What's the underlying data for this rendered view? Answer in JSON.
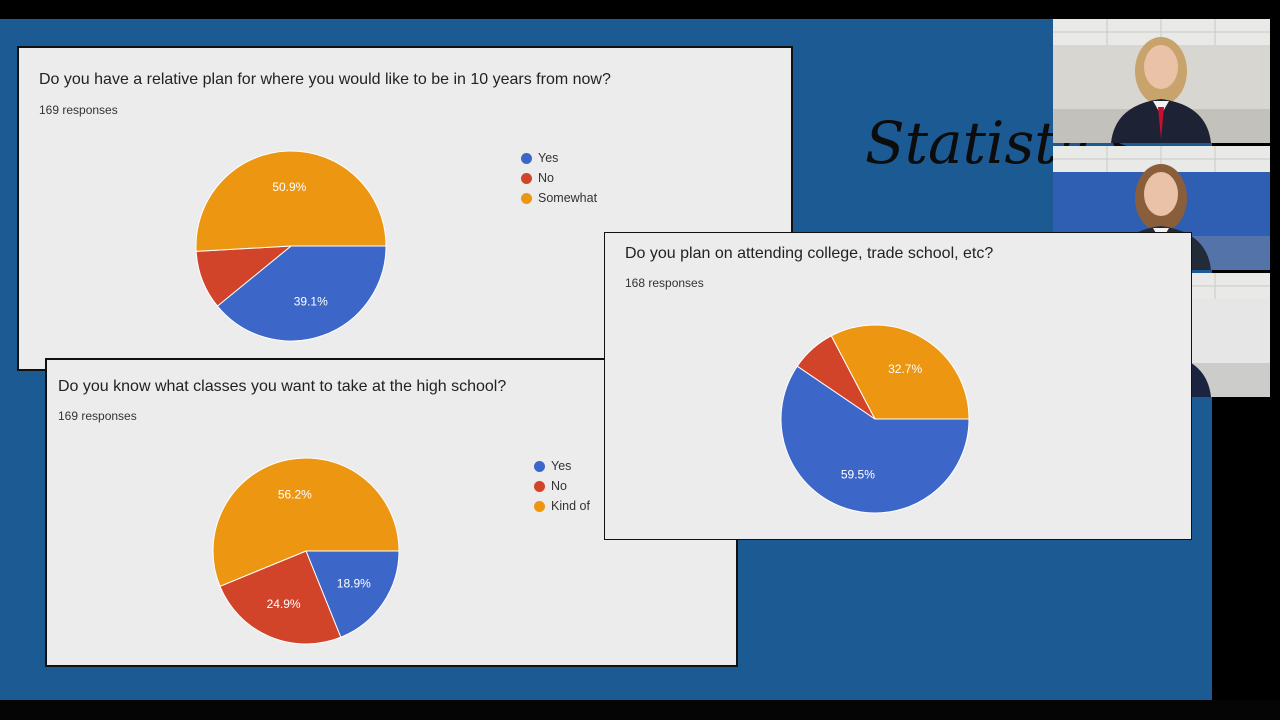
{
  "slide": {
    "title": "Statistics",
    "colors": {
      "background": "#1c5a94",
      "yes": "#3c67c8",
      "no": "#d2442a",
      "other": "#ec9612"
    }
  },
  "cards": [
    {
      "question": "Do you have a relative plan for where you would like to be in 10 years from now?",
      "responses": "169 responses",
      "legend": [
        "Yes",
        "No",
        "Somewhat"
      ],
      "chart_data": {
        "type": "pie",
        "categories": [
          "Yes",
          "No",
          "Somewhat"
        ],
        "values": [
          39.1,
          10.0,
          50.9
        ],
        "data_labels": [
          "39.1%",
          "",
          "50.9%"
        ],
        "colors": [
          "#3c67c8",
          "#d2442a",
          "#ec9612"
        ],
        "legend_position": "right"
      }
    },
    {
      "question": "Do you know what classes you want to take at the high school?",
      "responses": "169 responses",
      "legend": [
        "Yes",
        "No",
        "Kind of"
      ],
      "chart_data": {
        "type": "pie",
        "categories": [
          "Yes",
          "No",
          "Kind of"
        ],
        "values": [
          18.9,
          24.9,
          56.2
        ],
        "data_labels": [
          "18.9%",
          "24.9%",
          "56.2%"
        ],
        "colors": [
          "#3c67c8",
          "#d2442a",
          "#ec9612"
        ],
        "legend_position": "right"
      }
    },
    {
      "question": "Do you plan on attending college, trade school, etc?",
      "responses": "168 responses",
      "legend": [],
      "chart_data": {
        "type": "pie",
        "categories": [
          "",
          "",
          ""
        ],
        "values": [
          59.5,
          7.8,
          32.7
        ],
        "data_labels": [
          "59.5%",
          "",
          "32.7%"
        ],
        "colors": [
          "#3c67c8",
          "#d2442a",
          "#ec9612"
        ],
        "legend_position": "none"
      }
    }
  ],
  "participants": [
    {
      "shirt": "#1e2235",
      "tie": "#c8102e",
      "hair": "#c8a46c",
      "wall": "#d8d6d0"
    },
    {
      "shirt": "#232a38",
      "tie": "#c8102e",
      "hair": "#8a5d3b",
      "wall": "#2f5fb3"
    },
    {
      "shirt": "#1a2440",
      "tie": "#c8102e",
      "hair": "#151515",
      "wall": "#e6e6e6"
    }
  ]
}
